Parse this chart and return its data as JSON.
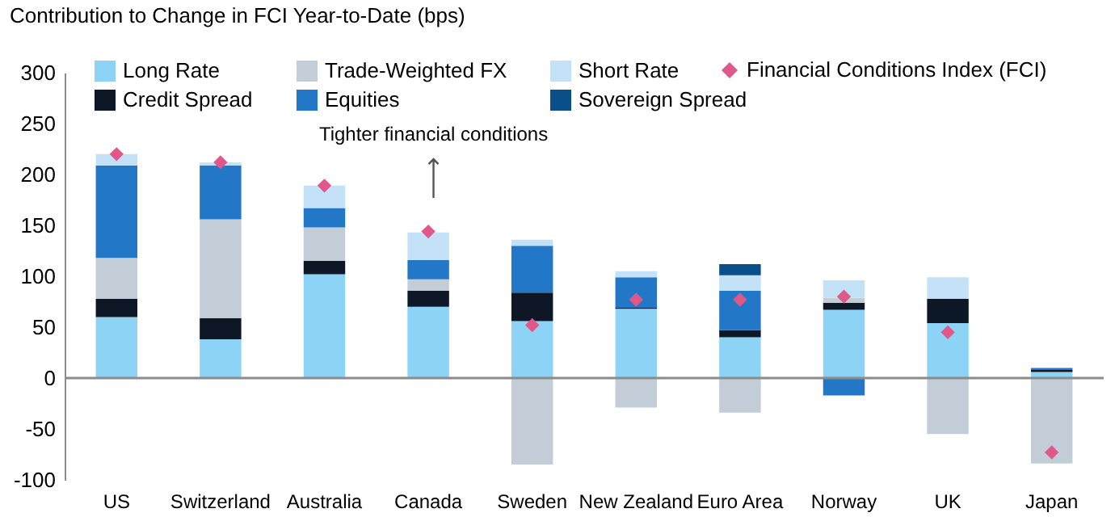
{
  "chart_data": {
    "type": "bar",
    "stacked": true,
    "title": "Contribution to Change in FCI Year-to-Date (bps)",
    "categories": [
      "US",
      "Switzerland",
      "Australia",
      "Canada",
      "Sweden",
      "New Zealand",
      "Euro Area",
      "Norway",
      "UK",
      "Japan"
    ],
    "series": [
      {
        "name": "Long Rate",
        "color": "#8dd3f5",
        "values": [
          60,
          38,
          102,
          70,
          56,
          68,
          40,
          67,
          54,
          6
        ]
      },
      {
        "name": "Credit Spread",
        "color": "#0d1726",
        "values": [
          18,
          21,
          13,
          16,
          28,
          1,
          7,
          7,
          24,
          2
        ]
      },
      {
        "name": "Trade-Weighted FX",
        "color": "#c3cdd8",
        "values": [
          40,
          97,
          33,
          11,
          -85,
          -29,
          -34,
          5,
          -55,
          -84
        ]
      },
      {
        "name": "Equities",
        "color": "#2277c6",
        "values": [
          91,
          53,
          19,
          19,
          46,
          30,
          39,
          -17,
          null,
          2
        ]
      },
      {
        "name": "Short Rate",
        "color": "#c3e1f7",
        "values": [
          11,
          3,
          22,
          27,
          6,
          6,
          15,
          17,
          21,
          null
        ]
      },
      {
        "name": "Sovereign Spread",
        "color": "#0b4f8a",
        "values": [
          null,
          null,
          null,
          null,
          null,
          null,
          11,
          null,
          null,
          null
        ]
      },
      {
        "name": "Financial Conditions Index (FCI)",
        "type": "scatter",
        "marker": "diamond",
        "color": "#e0588a",
        "values": [
          220,
          212,
          189,
          144,
          52,
          77,
          77,
          80,
          45,
          -73
        ]
      }
    ],
    "ylim": [
      -100,
      300
    ],
    "yticks": [
      -100,
      -50,
      0,
      50,
      100,
      150,
      200,
      250,
      300
    ],
    "ref_lines": [
      {
        "axis": "y",
        "value": 0,
        "color": "#8c8c8c"
      }
    ],
    "annotations": [
      "Tighter financial conditions"
    ],
    "legend": "top",
    "grid": false
  }
}
